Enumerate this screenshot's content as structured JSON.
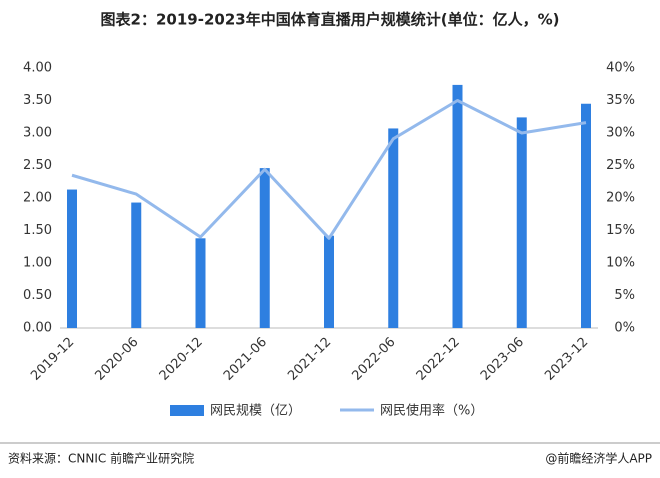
{
  "chart_data": {
    "type": "bar-line",
    "title": "图表2：2019-2023年中国体育直播用户规模统计(单位：亿人，%)",
    "categories": [
      "2019-12",
      "2020-06",
      "2020-12",
      "2021-06",
      "2021-12",
      "2022-06",
      "2022-12",
      "2023-06",
      "2023-12"
    ],
    "series": [
      {
        "name": "网民规模（亿）",
        "type": "bar",
        "color": "#2e7fe0",
        "values": [
          2.13,
          1.93,
          1.38,
          2.46,
          1.42,
          3.07,
          3.74,
          3.24,
          3.45
        ]
      },
      {
        "name": "网民使用率（%）",
        "type": "line",
        "axis": "y2",
        "color": "#93b9ec",
        "values": [
          23.5,
          20.6,
          14.0,
          24.4,
          13.8,
          29.1,
          35.0,
          30.0,
          31.6
        ]
      }
    ],
    "ylim": [
      0,
      4
    ],
    "yticks": [
      {
        "value": 0,
        "label": "0.00"
      },
      {
        "value": 0.5,
        "label": "0.50"
      },
      {
        "value": 1,
        "label": "1.00"
      },
      {
        "value": 1.5,
        "label": "1.50"
      },
      {
        "value": 2,
        "label": "2.00"
      },
      {
        "value": 2.5,
        "label": "2.50"
      },
      {
        "value": 3,
        "label": "3.00"
      },
      {
        "value": 3.5,
        "label": "3.50"
      },
      {
        "value": 4,
        "label": "4.00"
      }
    ],
    "y2lim": [
      0,
      40
    ],
    "y2ticks": [
      {
        "value": 0,
        "label": "0%"
      },
      {
        "value": 5,
        "label": "5%"
      },
      {
        "value": 10,
        "label": "10%"
      },
      {
        "value": 15,
        "label": "15%"
      },
      {
        "value": 20,
        "label": "20%"
      },
      {
        "value": 25,
        "label": "25%"
      },
      {
        "value": 30,
        "label": "30%"
      },
      {
        "value": 35,
        "label": "35%"
      },
      {
        "value": 40,
        "label": "40%"
      }
    ],
    "grid": false,
    "legend": "bottom",
    "source": "资料来源：CNNIC 前瞻产业研究院",
    "credit": "@前瞻经济学人APP"
  }
}
